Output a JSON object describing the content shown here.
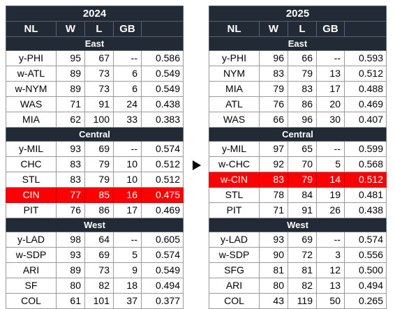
{
  "tables": [
    {
      "year": "2024",
      "headers": [
        "NL",
        "W",
        "L",
        "GB",
        ""
      ],
      "divisions": [
        {
          "name": "East",
          "teams": [
            {
              "team": "y-PHI",
              "w": "95",
              "l": "67",
              "gb": "--",
              "pct": "0.586",
              "highlight": false
            },
            {
              "team": "w-ATL",
              "w": "89",
              "l": "73",
              "gb": "6",
              "pct": "0.549",
              "highlight": false
            },
            {
              "team": "w-NYM",
              "w": "89",
              "l": "73",
              "gb": "6",
              "pct": "0.549",
              "highlight": false
            },
            {
              "team": "WAS",
              "w": "71",
              "l": "91",
              "gb": "24",
              "pct": "0.438",
              "highlight": false
            },
            {
              "team": "MIA",
              "w": "62",
              "l": "100",
              "gb": "33",
              "pct": "0.383",
              "highlight": false
            }
          ]
        },
        {
          "name": "Central",
          "teams": [
            {
              "team": "y-MIL",
              "w": "93",
              "l": "69",
              "gb": "--",
              "pct": "0.574",
              "highlight": false
            },
            {
              "team": "CHC",
              "w": "83",
              "l": "79",
              "gb": "10",
              "pct": "0.512",
              "highlight": false
            },
            {
              "team": "STL",
              "w": "83",
              "l": "79",
              "gb": "10",
              "pct": "0.512",
              "highlight": false
            },
            {
              "team": "CIN",
              "w": "77",
              "l": "85",
              "gb": "16",
              "pct": "0.475",
              "highlight": true
            },
            {
              "team": "PIT",
              "w": "76",
              "l": "86",
              "gb": "17",
              "pct": "0.469",
              "highlight": false
            }
          ]
        },
        {
          "name": "West",
          "teams": [
            {
              "team": "y-LAD",
              "w": "98",
              "l": "64",
              "gb": "--",
              "pct": "0.605",
              "highlight": false
            },
            {
              "team": "w-SDP",
              "w": "93",
              "l": "69",
              "gb": "5",
              "pct": "0.574",
              "highlight": false
            },
            {
              "team": "ARI",
              "w": "89",
              "l": "73",
              "gb": "9",
              "pct": "0.549",
              "highlight": false
            },
            {
              "team": "SF",
              "w": "80",
              "l": "82",
              "gb": "18",
              "pct": "0.494",
              "highlight": false
            },
            {
              "team": "COL",
              "w": "61",
              "l": "101",
              "gb": "37",
              "pct": "0.377",
              "highlight": false
            }
          ]
        }
      ]
    },
    {
      "year": "2025",
      "headers": [
        "NL",
        "W",
        "L",
        "GB",
        ""
      ],
      "divisions": [
        {
          "name": "East",
          "teams": [
            {
              "team": "y-PHI",
              "w": "96",
              "l": "66",
              "gb": "--",
              "pct": "0.593",
              "highlight": false
            },
            {
              "team": "NYM",
              "w": "83",
              "l": "79",
              "gb": "13",
              "pct": "0.512",
              "highlight": false
            },
            {
              "team": "MIA",
              "w": "79",
              "l": "83",
              "gb": "17",
              "pct": "0.488",
              "highlight": false
            },
            {
              "team": "ATL",
              "w": "76",
              "l": "86",
              "gb": "20",
              "pct": "0.469",
              "highlight": false
            },
            {
              "team": "WAS",
              "w": "66",
              "l": "96",
              "gb": "30",
              "pct": "0.407",
              "highlight": false
            }
          ]
        },
        {
          "name": "Central",
          "teams": [
            {
              "team": "y-MIL",
              "w": "97",
              "l": "65",
              "gb": "--",
              "pct": "0.599",
              "highlight": false
            },
            {
              "team": "w-CHC",
              "w": "92",
              "l": "70",
              "gb": "5",
              "pct": "0.568",
              "highlight": false
            },
            {
              "team": "w-CIN",
              "w": "83",
              "l": "79",
              "gb": "14",
              "pct": "0.512",
              "highlight": true
            },
            {
              "team": "STL",
              "w": "78",
              "l": "84",
              "gb": "19",
              "pct": "0.481",
              "highlight": false
            },
            {
              "team": "PIT",
              "w": "71",
              "l": "91",
              "gb": "26",
              "pct": "0.438",
              "highlight": false
            }
          ]
        },
        {
          "name": "West",
          "teams": [
            {
              "team": "y-LAD",
              "w": "93",
              "l": "69",
              "gb": "--",
              "pct": "0.574",
              "highlight": false
            },
            {
              "team": "w-SDP",
              "w": "90",
              "l": "72",
              "gb": "3",
              "pct": "0.556",
              "highlight": false
            },
            {
              "team": "SFG",
              "w": "81",
              "l": "81",
              "gb": "12",
              "pct": "0.500",
              "highlight": false
            },
            {
              "team": "ARI",
              "w": "80",
              "l": "82",
              "gb": "13",
              "pct": "0.494",
              "highlight": false
            },
            {
              "team": "COL",
              "w": "43",
              "l": "119",
              "gb": "50",
              "pct": "0.265",
              "highlight": false
            }
          ]
        }
      ]
    }
  ],
  "arrow_icon": "play-arrow-icon",
  "colors": {
    "header_bg": "#222a35",
    "header_text": "#ffffff",
    "highlight_bg": "#ff0000",
    "highlight_text": "#ffffff",
    "grid": "#9a9a9a"
  }
}
